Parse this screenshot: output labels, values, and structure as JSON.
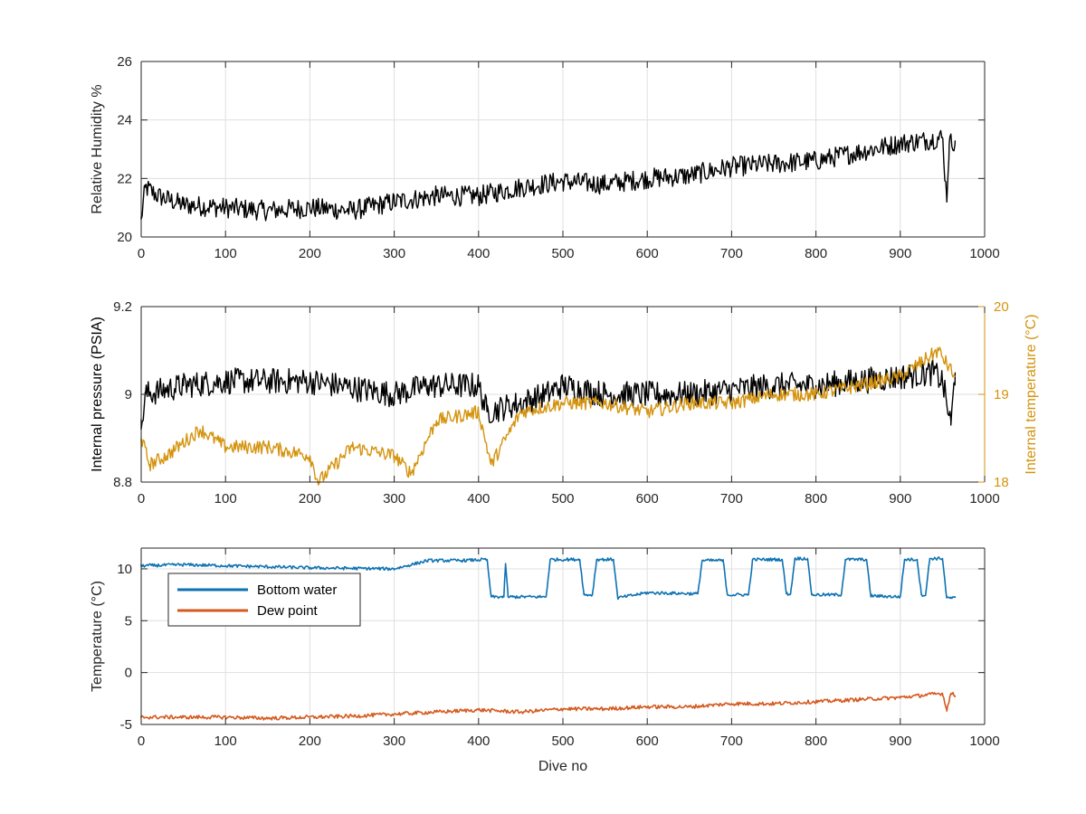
{
  "colors": {
    "black": "#000000",
    "gold": "#D4930E",
    "blue": "#0E72B2",
    "orange": "#D55A1F",
    "grid": "#DFDFDF",
    "axis": "#262626"
  },
  "chart_data": [
    {
      "type": "line",
      "xlabel": "",
      "ylabel": "Relative Humidity %",
      "xlim": [
        0,
        1000
      ],
      "ylim": [
        20,
        26
      ],
      "x_ticks": [
        0,
        100,
        200,
        300,
        400,
        500,
        600,
        700,
        800,
        900,
        1000
      ],
      "y_ticks": [
        20,
        22,
        24,
        26
      ],
      "grid": true,
      "series": [
        {
          "color": "#000000",
          "x": [
            0,
            5,
            20,
            50,
            100,
            150,
            200,
            250,
            300,
            350,
            400,
            450,
            500,
            550,
            600,
            650,
            700,
            750,
            800,
            850,
            900,
            930,
            950,
            955,
            958,
            965
          ],
          "y": [
            20.6,
            21.7,
            21.4,
            21.1,
            21.0,
            20.9,
            21.0,
            20.9,
            21.2,
            21.4,
            21.4,
            21.7,
            21.9,
            21.8,
            22.0,
            22.1,
            22.4,
            22.5,
            22.6,
            22.9,
            23.2,
            23.3,
            23.4,
            21.3,
            23.2,
            23.3
          ]
        }
      ]
    },
    {
      "type": "line",
      "xlabel": "",
      "ylabel": "Internal pressure (PSIA)",
      "ylabel_right": "Internal temperature (°C)",
      "xlim": [
        0,
        1000
      ],
      "ylim": [
        8.8,
        9.2
      ],
      "ylim_right": [
        18,
        20
      ],
      "x_ticks": [
        0,
        100,
        200,
        300,
        400,
        500,
        600,
        700,
        800,
        900,
        1000
      ],
      "y_ticks": [
        8.8,
        9.0,
        9.2
      ],
      "y_tick_labels": [
        "8.8",
        "9",
        "9.2"
      ],
      "y_ticks_right": [
        18,
        19,
        20
      ],
      "grid": true,
      "series": [
        {
          "axis": "left",
          "color": "#000000",
          "x": [
            0,
            5,
            50,
            100,
            200,
            300,
            340,
            400,
            410,
            450,
            480,
            500,
            550,
            600,
            650,
            700,
            750,
            800,
            850,
            900,
            940,
            950,
            960,
            965
          ],
          "y": [
            8.92,
            9.0,
            9.02,
            9.03,
            9.03,
            9.0,
            9.02,
            9.02,
            8.96,
            8.98,
            9.0,
            9.02,
            9.0,
            9.0,
            9.0,
            9.01,
            9.02,
            9.02,
            9.03,
            9.04,
            9.05,
            9.03,
            8.93,
            9.05
          ]
        },
        {
          "axis": "right",
          "color": "#D4930E",
          "x": [
            0,
            10,
            30,
            70,
            100,
            150,
            200,
            210,
            250,
            300,
            320,
            350,
            400,
            415,
            450,
            500,
            550,
            600,
            650,
            700,
            750,
            800,
            850,
            900,
            945,
            965
          ],
          "y": [
            18.5,
            18.2,
            18.3,
            18.6,
            18.4,
            18.4,
            18.3,
            18.0,
            18.4,
            18.3,
            18.1,
            18.7,
            18.8,
            18.2,
            18.8,
            18.9,
            18.9,
            18.8,
            18.9,
            18.9,
            19.0,
            19.0,
            19.1,
            19.2,
            19.5,
            19.2
          ]
        }
      ]
    },
    {
      "type": "line",
      "xlabel": "Dive no",
      "ylabel": "Temperature (°C)",
      "xlim": [
        0,
        1000
      ],
      "ylim": [
        -5,
        12
      ],
      "x_ticks": [
        0,
        100,
        200,
        300,
        400,
        500,
        600,
        700,
        800,
        900,
        1000
      ],
      "y_ticks": [
        -5,
        0,
        5,
        10
      ],
      "legend": "top-left",
      "grid": true,
      "series": [
        {
          "name": "Bottom water",
          "color": "#0E72B2",
          "x": [
            0,
            50,
            100,
            200,
            300,
            340,
            380,
            410,
            415,
            430,
            432,
            435,
            440,
            480,
            485,
            520,
            525,
            535,
            540,
            560,
            565,
            600,
            660,
            665,
            690,
            695,
            720,
            725,
            760,
            765,
            770,
            775,
            790,
            795,
            830,
            835,
            860,
            865,
            900,
            905,
            920,
            925,
            930,
            935,
            950,
            955,
            960,
            965
          ],
          "y": [
            10.3,
            10.4,
            10.3,
            10.1,
            10.0,
            10.8,
            10.8,
            10.9,
            7.3,
            7.3,
            10.5,
            7.3,
            7.3,
            7.3,
            10.9,
            10.9,
            7.5,
            7.5,
            10.9,
            10.9,
            7.2,
            7.7,
            7.6,
            10.8,
            10.8,
            7.5,
            7.5,
            10.9,
            10.9,
            7.6,
            7.6,
            11.0,
            11.0,
            7.5,
            7.5,
            10.9,
            10.9,
            7.4,
            7.3,
            10.9,
            10.9,
            7.5,
            7.5,
            11.0,
            11.0,
            7.2,
            7.2,
            7.2
          ]
        },
        {
          "name": "Dew point",
          "color": "#D55A1F",
          "x": [
            0,
            50,
            100,
            150,
            200,
            250,
            300,
            350,
            400,
            450,
            500,
            550,
            600,
            650,
            700,
            750,
            800,
            850,
            900,
            950,
            955,
            960,
            965
          ],
          "y": [
            -4.3,
            -4.3,
            -4.3,
            -4.4,
            -4.3,
            -4.2,
            -4.0,
            -3.8,
            -3.6,
            -3.8,
            -3.5,
            -3.5,
            -3.3,
            -3.3,
            -3.0,
            -3.0,
            -2.8,
            -2.6,
            -2.4,
            -2.0,
            -3.6,
            -2.0,
            -2.2
          ]
        }
      ]
    }
  ]
}
